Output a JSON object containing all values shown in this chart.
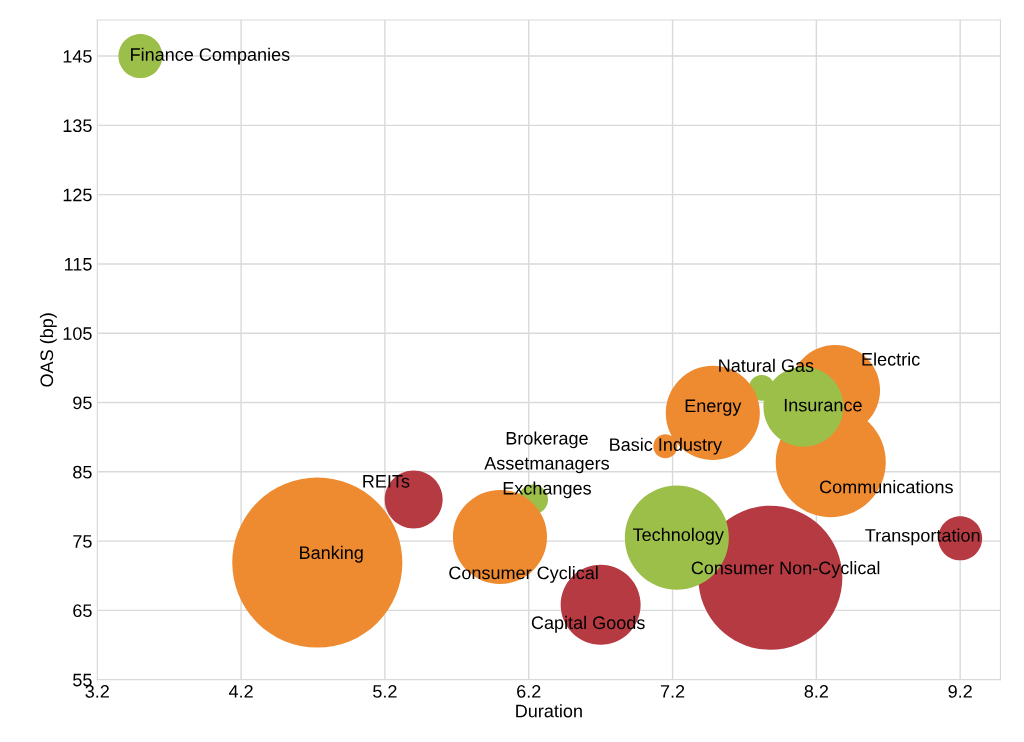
{
  "chart_data": {
    "type": "bubble",
    "xlabel": "Duration",
    "ylabel": "OAS (bp)",
    "xlim": [
      3.2,
      9.48
    ],
    "ylim": [
      55,
      150.2
    ],
    "xticks": [
      3.2,
      4.2,
      5.2,
      6.2,
      7.2,
      8.2,
      9.2
    ],
    "yticks": [
      55,
      65,
      75,
      85,
      95,
      105,
      115,
      125,
      135,
      145
    ],
    "grid": true,
    "legend": false,
    "annotations": [
      "Assetmanagers",
      "Brokerage"
    ],
    "series": [
      {
        "name": "Banking",
        "color": "#ee8a30",
        "x": [
          4.73
        ],
        "values": [
          71.9
        ],
        "sizes": [
          1
        ]
      },
      {
        "name": "Consumer Non-Cyclical",
        "color": "#b53a42",
        "x": [
          7.88
        ],
        "values": [
          69.7
        ],
        "sizes": [
          0.717
        ]
      },
      {
        "name": "Communications",
        "color": "#ee8a30",
        "x": [
          8.3
        ],
        "values": [
          86.4
        ],
        "sizes": [
          0.419
        ]
      },
      {
        "name": "Electric",
        "color": "#ee8a30",
        "x": [
          8.33
        ],
        "values": [
          96.8
        ],
        "sizes": [
          0.28
        ]
      },
      {
        "name": "Insurance",
        "color": "#9cbf4a",
        "x": [
          8.11
        ],
        "values": [
          94.4
        ],
        "sizes": [
          0.221
        ]
      },
      {
        "name": "Natural Gas",
        "color": "#9cbf4a",
        "x": [
          7.82
        ],
        "values": [
          97.1
        ],
        "sizes": [
          0.023
        ]
      },
      {
        "name": "Basic Industry",
        "color": "#ee8a30",
        "x": [
          7.15
        ],
        "values": [
          88.7
        ],
        "sizes": [
          0.02
        ]
      },
      {
        "name": "Energy",
        "color": "#ee8a30",
        "x": [
          7.48
        ],
        "values": [
          93.5
        ],
        "sizes": [
          0.306
        ]
      },
      {
        "name": "Technology",
        "color": "#9cbf4a",
        "x": [
          7.23
        ],
        "values": [
          75.5
        ],
        "sizes": [
          0.374
        ]
      },
      {
        "name": "Capital Goods",
        "color": "#b53a42",
        "x": [
          6.7
        ],
        "values": [
          65.8
        ],
        "sizes": [
          0.221
        ]
      },
      {
        "name": "Exchanges",
        "color": "#9cbf4a",
        "x": [
          6.23
        ],
        "values": [
          81.0
        ],
        "sizes": [
          0.031
        ]
      },
      {
        "name": "Consumer Cyclical",
        "color": "#ee8a30",
        "x": [
          6.0
        ],
        "values": [
          75.6
        ],
        "sizes": [
          0.306
        ]
      },
      {
        "name": "REITs",
        "color": "#b53a42",
        "x": [
          5.4
        ],
        "values": [
          81.0
        ],
        "sizes": [
          0.116
        ]
      },
      {
        "name": "Transportation",
        "color": "#b53a42",
        "x": [
          9.2
        ],
        "values": [
          75.4
        ],
        "sizes": [
          0.067
        ]
      },
      {
        "name": "Finance Companies",
        "color": "#9cbf4a",
        "x": [
          3.5
        ],
        "values": [
          145.0
        ],
        "sizes": [
          0.067
        ]
      }
    ]
  }
}
